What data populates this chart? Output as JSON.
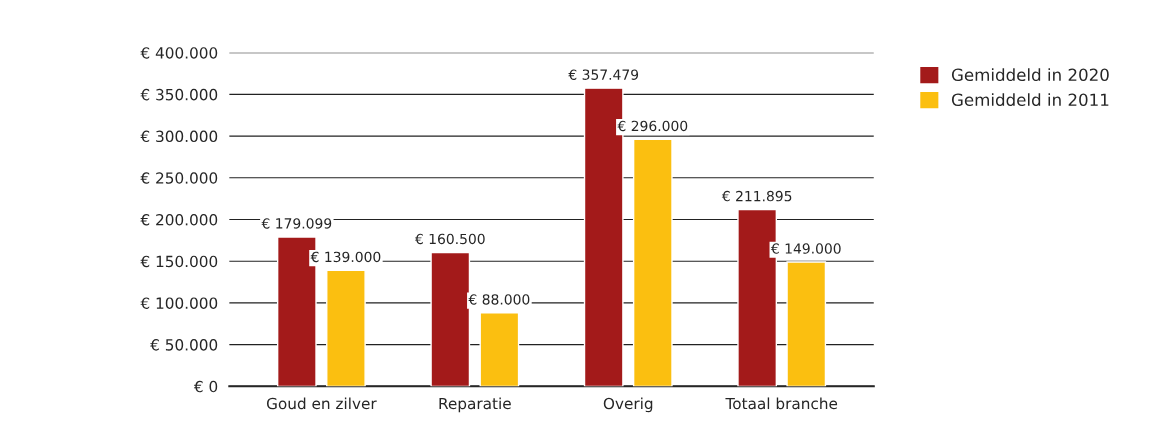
{
  "chart_data": {
    "type": "bar",
    "categories": [
      "Goud en zilver",
      "Reparatie",
      "Overig",
      "Totaal branche"
    ],
    "series": [
      {
        "name": "Gemiddeld in 2020",
        "color": "#a31a1a",
        "values": [
          179099,
          160500,
          357479,
          211895
        ],
        "value_labels": [
          "€ 179.099",
          "€ 160.500",
          "€ 357.479",
          "€ 211.895"
        ]
      },
      {
        "name": "Gemiddeld in 2011",
        "color": "#fbbf10",
        "values": [
          139000,
          88000,
          296000,
          149000
        ],
        "value_labels": [
          "€ 139.000",
          "€ 88.000",
          "€ 296.000",
          "€ 149.000"
        ]
      }
    ],
    "ylim": [
      0,
      400000
    ],
    "yticks": [
      {
        "value": 0,
        "label": "€ 0"
      },
      {
        "value": 50000,
        "label": "€ 50.000"
      },
      {
        "value": 100000,
        "label": "€ 100.000"
      },
      {
        "value": 150000,
        "label": "€ 150.000"
      },
      {
        "value": 200000,
        "label": "€ 200.000"
      },
      {
        "value": 250000,
        "label": "€ 250.000"
      },
      {
        "value": 300000,
        "label": "€ 300.000"
      },
      {
        "value": 350000,
        "label": "€ 350.000"
      },
      {
        "value": 400000,
        "label": "€ 400.000"
      }
    ],
    "grid": "y",
    "legend": "top right"
  }
}
